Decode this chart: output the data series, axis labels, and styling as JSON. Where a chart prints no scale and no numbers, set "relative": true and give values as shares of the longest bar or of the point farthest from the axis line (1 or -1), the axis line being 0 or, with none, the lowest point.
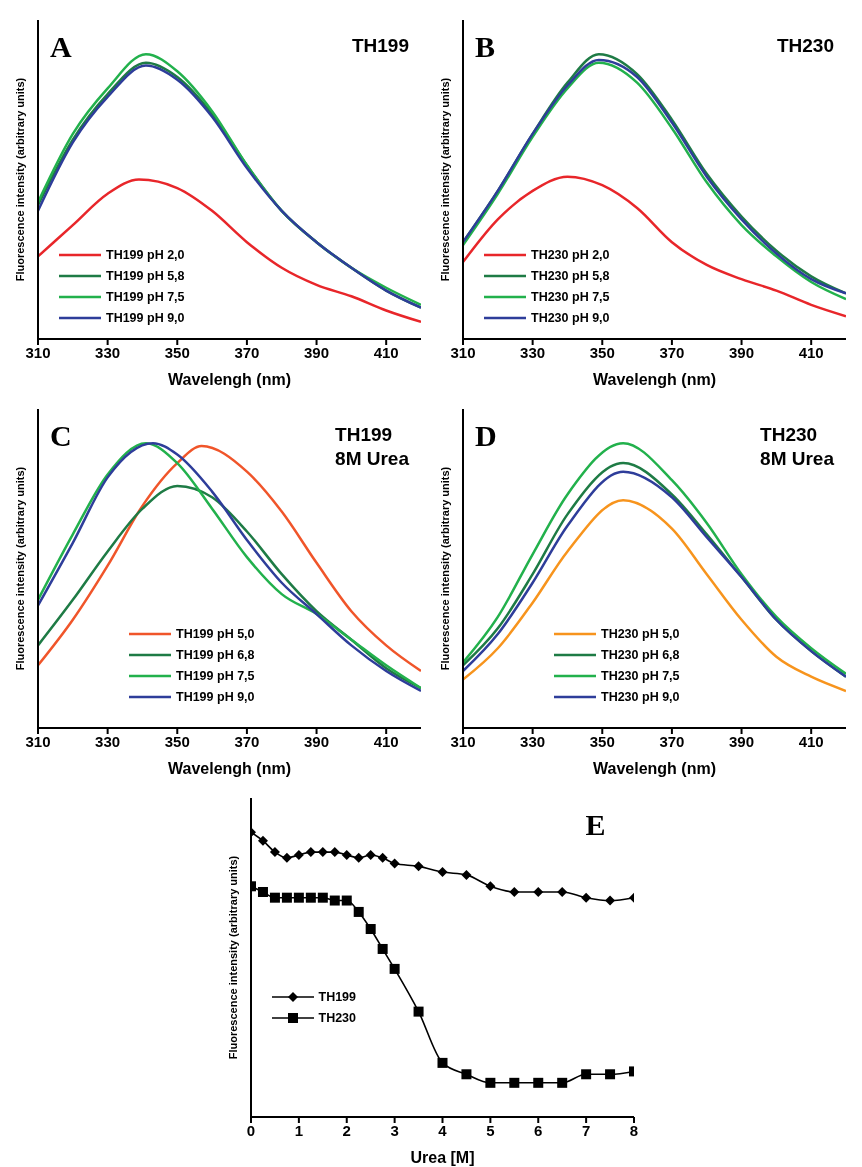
{
  "chart_data": [
    {
      "type": "line",
      "title": "TH199",
      "annotations": [
        "A"
      ],
      "xlabel": "Wavelengh (nm)",
      "ylabel": "Fluorescence intensity (arbitrary units)",
      "relative": true,
      "xlim": [
        310,
        420
      ],
      "xticks": [
        310,
        330,
        350,
        370,
        390,
        410
      ],
      "legend": "bottom left",
      "marker": "none",
      "series": [
        {
          "name": "TH199 pH 2,0",
          "color": "#e8262a",
          "x": [
            310,
            320,
            330,
            339,
            350,
            360,
            370,
            380,
            390,
            400,
            410,
            420
          ],
          "values": [
            0.29,
            0.4,
            0.51,
            0.56,
            0.53,
            0.45,
            0.34,
            0.25,
            0.19,
            0.15,
            0.1,
            0.06
          ]
        },
        {
          "name": "TH199 pH 5,8",
          "color": "#1e7b45",
          "x": [
            310,
            320,
            330,
            341,
            350,
            360,
            370,
            380,
            390,
            400,
            410,
            420
          ],
          "values": [
            0.47,
            0.7,
            0.86,
            0.97,
            0.92,
            0.79,
            0.61,
            0.45,
            0.34,
            0.25,
            0.17,
            0.11
          ]
        },
        {
          "name": "TH199 pH 7,5",
          "color": "#22b14c",
          "x": [
            310,
            320,
            330,
            341,
            350,
            360,
            370,
            380,
            390,
            400,
            410,
            420
          ],
          "values": [
            0.48,
            0.72,
            0.88,
            1,
            0.94,
            0.8,
            0.61,
            0.45,
            0.34,
            0.25,
            0.18,
            0.12
          ]
        },
        {
          "name": "TH199 pH 9,0",
          "color": "#2e3d9a",
          "x": [
            310,
            320,
            330,
            341,
            350,
            360,
            370,
            380,
            390,
            400,
            410,
            420
          ],
          "values": [
            0.45,
            0.69,
            0.85,
            0.96,
            0.91,
            0.78,
            0.6,
            0.45,
            0.34,
            0.25,
            0.17,
            0.11
          ]
        }
      ]
    },
    {
      "type": "line",
      "title": "TH230",
      "annotations": [
        "B"
      ],
      "xlabel": "Wavelengh (nm)",
      "ylabel": "Fluorescence intensity (arbitrary units)",
      "relative": true,
      "xlim": [
        310,
        420
      ],
      "xticks": [
        310,
        330,
        350,
        370,
        390,
        410
      ],
      "legend": "bottom left",
      "marker": "none",
      "series": [
        {
          "name": "TH230 pH 2,0",
          "color": "#e8262a",
          "x": [
            310,
            320,
            330,
            340,
            350,
            360,
            370,
            380,
            390,
            400,
            410,
            420
          ],
          "values": [
            0.27,
            0.42,
            0.52,
            0.57,
            0.54,
            0.46,
            0.34,
            0.26,
            0.21,
            0.17,
            0.12,
            0.08
          ]
        },
        {
          "name": "TH230 pH 5,8",
          "color": "#1e7b45",
          "x": [
            310,
            320,
            330,
            340,
            349,
            360,
            370,
            380,
            390,
            400,
            410,
            420
          ],
          "values": [
            0.34,
            0.52,
            0.72,
            0.9,
            1,
            0.93,
            0.77,
            0.58,
            0.43,
            0.31,
            0.22,
            0.16
          ]
        },
        {
          "name": "TH230 pH 7,5",
          "color": "#22b14c",
          "x": [
            310,
            320,
            330,
            340,
            349,
            360,
            370,
            380,
            390,
            400,
            410,
            420
          ],
          "values": [
            0.33,
            0.51,
            0.71,
            0.88,
            0.97,
            0.9,
            0.74,
            0.55,
            0.4,
            0.29,
            0.2,
            0.14
          ]
        },
        {
          "name": "TH230 pH 9,0",
          "color": "#2e3d9a",
          "x": [
            310,
            320,
            330,
            340,
            349,
            360,
            370,
            380,
            390,
            400,
            410,
            420
          ],
          "values": [
            0.34,
            0.52,
            0.72,
            0.89,
            0.98,
            0.92,
            0.76,
            0.57,
            0.42,
            0.3,
            0.21,
            0.16
          ]
        }
      ]
    },
    {
      "type": "line",
      "title": "TH199",
      "subtitle": "8M Urea",
      "annotations": [
        "C"
      ],
      "xlabel": "Wavelengh (nm)",
      "ylabel": "Fluorescence intensity (arbitrary units)",
      "relative": true,
      "xlim": [
        310,
        420
      ],
      "xticks": [
        310,
        330,
        350,
        370,
        390,
        410
      ],
      "legend": "bottom",
      "marker": "none",
      "series": [
        {
          "name": "TH199 pH 5,0",
          "color": "#f0552a",
          "x": [
            310,
            320,
            330,
            340,
            350,
            357,
            370,
            380,
            390,
            400,
            410,
            420
          ],
          "values": [
            0.22,
            0.38,
            0.57,
            0.78,
            0.93,
            0.99,
            0.9,
            0.76,
            0.58,
            0.41,
            0.29,
            0.2
          ]
        },
        {
          "name": "TH199 pH 6,8",
          "color": "#1e7b45",
          "x": [
            310,
            320,
            330,
            340,
            350,
            360,
            370,
            380,
            390,
            400,
            410,
            420
          ],
          "values": [
            0.29,
            0.45,
            0.62,
            0.77,
            0.85,
            0.81,
            0.69,
            0.54,
            0.41,
            0.31,
            0.21,
            0.14
          ]
        },
        {
          "name": "TH199 pH 7,5",
          "color": "#22b14c",
          "x": [
            310,
            320,
            330,
            341,
            350,
            360,
            370,
            380,
            390,
            400,
            410,
            420
          ],
          "values": [
            0.45,
            0.68,
            0.89,
            1,
            0.93,
            0.77,
            0.6,
            0.47,
            0.4,
            0.31,
            0.22,
            0.14
          ]
        },
        {
          "name": "TH199 pH 9,0",
          "color": "#2e3d9a",
          "x": [
            310,
            320,
            330,
            343,
            350,
            360,
            370,
            380,
            390,
            400,
            410,
            420
          ],
          "values": [
            0.43,
            0.65,
            0.88,
            1,
            0.96,
            0.83,
            0.66,
            0.51,
            0.4,
            0.29,
            0.2,
            0.13
          ]
        }
      ]
    },
    {
      "type": "line",
      "title": "TH230",
      "subtitle": "8M Urea",
      "annotations": [
        "D"
      ],
      "xlabel": "Wavelengh (nm)",
      "ylabel": "Fluorescence intensity (arbitrary units)",
      "relative": true,
      "xlim": [
        310,
        420
      ],
      "xticks": [
        310,
        330,
        350,
        370,
        390,
        410
      ],
      "legend": "bottom",
      "marker": "none",
      "series": [
        {
          "name": "TH230 pH 5,0",
          "color": "#f7941d",
          "x": [
            310,
            320,
            330,
            340,
            356,
            370,
            380,
            390,
            400,
            410,
            420
          ],
          "values": [
            0.17,
            0.28,
            0.44,
            0.62,
            0.8,
            0.7,
            0.54,
            0.38,
            0.25,
            0.18,
            0.13
          ]
        },
        {
          "name": "TH230 pH 6,8",
          "color": "#1e7b45",
          "x": [
            310,
            320,
            330,
            340,
            356,
            370,
            380,
            390,
            400,
            410,
            420
          ],
          "values": [
            0.22,
            0.35,
            0.54,
            0.75,
            0.93,
            0.82,
            0.68,
            0.53,
            0.38,
            0.27,
            0.18
          ]
        },
        {
          "name": "TH230 pH 7,5",
          "color": "#22b14c",
          "x": [
            310,
            320,
            330,
            340,
            356,
            370,
            380,
            390,
            400,
            410,
            420
          ],
          "values": [
            0.23,
            0.39,
            0.61,
            0.82,
            1,
            0.87,
            0.72,
            0.54,
            0.39,
            0.28,
            0.19
          ]
        },
        {
          "name": "TH230 pH 9,0",
          "color": "#2e3d9a",
          "x": [
            310,
            320,
            330,
            340,
            356,
            370,
            380,
            390,
            400,
            410,
            420
          ],
          "values": [
            0.2,
            0.33,
            0.51,
            0.71,
            0.9,
            0.81,
            0.67,
            0.53,
            0.38,
            0.27,
            0.18
          ]
        }
      ]
    },
    {
      "type": "line",
      "annotations": [
        "E"
      ],
      "xlabel": "Urea [M]",
      "ylabel": "Fluorescence intensity (arbitrary units)",
      "relative": true,
      "xlim": [
        0,
        8
      ],
      "xticks": [
        0,
        1,
        2,
        3,
        4,
        5,
        6,
        7,
        8
      ],
      "legend": "left",
      "x": [
        0,
        0.25,
        0.5,
        0.75,
        1,
        1.25,
        1.5,
        1.75,
        2,
        2.25,
        2.5,
        2.75,
        3,
        3.5,
        4,
        4.5,
        5,
        5.5,
        6,
        6.5,
        7,
        7.5,
        8
      ],
      "series": [
        {
          "name": "TH199",
          "color": "#000000",
          "marker": "diamond",
          "values": [
            1,
            0.97,
            0.93,
            0.91,
            0.92,
            0.93,
            0.93,
            0.93,
            0.92,
            0.91,
            0.92,
            0.91,
            0.89,
            0.88,
            0.86,
            0.85,
            0.81,
            0.79,
            0.79,
            0.79,
            0.77,
            0.76,
            0.77
          ]
        },
        {
          "name": "TH230",
          "color": "#000000",
          "marker": "square",
          "values": [
            0.81,
            0.79,
            0.77,
            0.77,
            0.77,
            0.77,
            0.77,
            0.76,
            0.76,
            0.72,
            0.66,
            0.59,
            0.52,
            0.37,
            0.19,
            0.15,
            0.12,
            0.12,
            0.12,
            0.12,
            0.15,
            0.15,
            0.16
          ]
        }
      ]
    }
  ]
}
